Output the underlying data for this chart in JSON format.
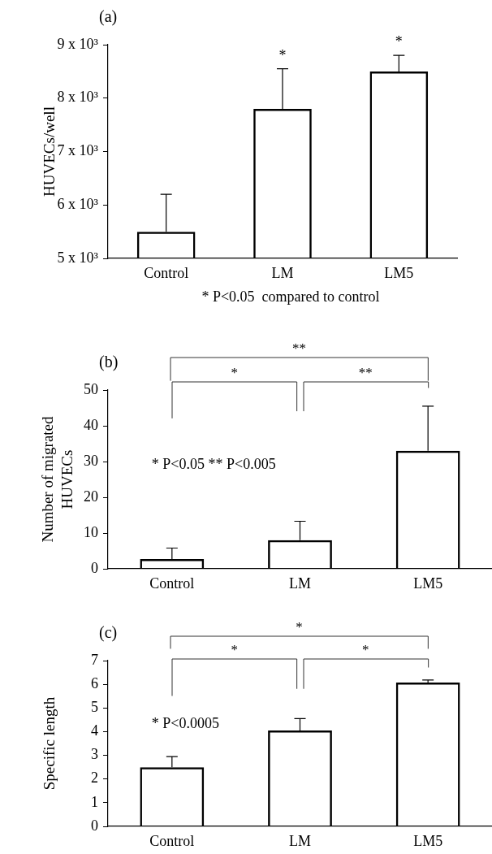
{
  "chart_data": [
    {
      "type": "bar",
      "title": "(a)",
      "ylabel": "HUVECs/well",
      "categories": [
        "Control",
        "LM",
        "LM5"
      ],
      "color": "#000000",
      "values": [
        5500,
        7800,
        8500
      ],
      "errors": [
        [
          5500,
          6200
        ],
        [
          7800,
          8550
        ],
        [
          8500,
          8800
        ]
      ],
      "ylim": [
        5000,
        9000
      ],
      "yticks": [
        {
          "value": 5000,
          "label": "5 x 10³"
        },
        {
          "value": 6000,
          "label": "6 x 10³"
        },
        {
          "value": 7000,
          "label": "7 x 10³"
        },
        {
          "value": 8000,
          "label": "8 x 10³"
        },
        {
          "value": 9000,
          "label": "9 x 10³"
        }
      ],
      "grid": false,
      "legend": false,
      "annotations": [
        "*",
        "*",
        "* P<0.05  compared to control"
      ]
    },
    {
      "type": "bar",
      "title": "(b)",
      "ylabel": "Number of migrated HUVECs",
      "categories": [
        "Control",
        "LM",
        "LM5"
      ],
      "color": "#000000",
      "values": [
        2.7,
        8,
        33
      ],
      "errors": [
        [
          2.7,
          5.8
        ],
        [
          8,
          13.3
        ],
        [
          33,
          45.5
        ]
      ],
      "ylim": [
        0,
        50
      ],
      "yticks": [
        0,
        10,
        20,
        30,
        40,
        50
      ],
      "grid": false,
      "legend": false,
      "annotations": [
        "**",
        "*",
        "**",
        "* P<0.05 ** P<0.005"
      ]
    },
    {
      "type": "bar",
      "title": "(c)",
      "ylabel": "Specific length",
      "categories": [
        "Control",
        "LM",
        "LM5"
      ],
      "color": "#000000",
      "values": [
        2.5,
        4.05,
        6.07
      ],
      "errors": [
        [
          2.5,
          2.95
        ],
        [
          4.05,
          4.55
        ],
        [
          6.07,
          6.18
        ]
      ],
      "ylim": [
        0,
        7
      ],
      "yticks": [
        0,
        1,
        2,
        3,
        4,
        5,
        6,
        7
      ],
      "grid": false,
      "legend": false,
      "annotations": [
        "*",
        "*",
        "*",
        "* P<0.0005"
      ]
    }
  ]
}
